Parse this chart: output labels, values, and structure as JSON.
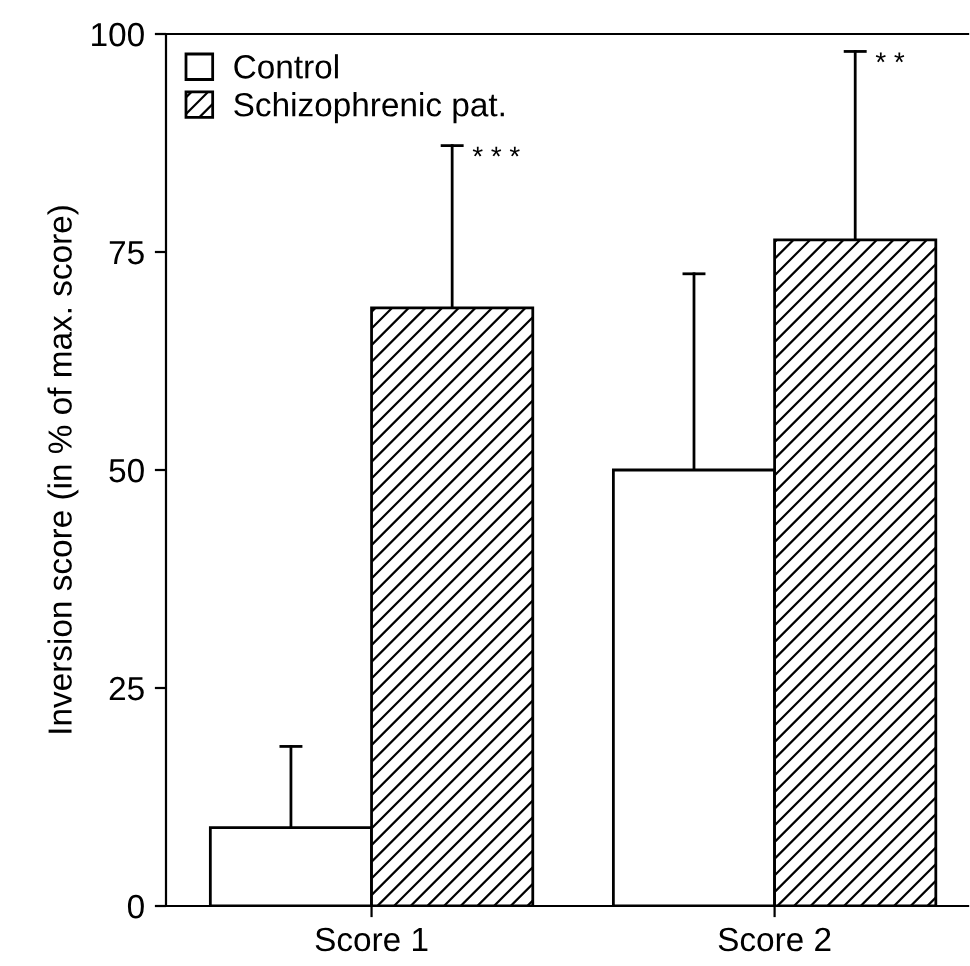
{
  "chart_data": {
    "type": "bar",
    "ylabel": "Inversion score (in % of max. score)",
    "categories": [
      "Score 1",
      "Score 2"
    ],
    "series": [
      {
        "name": "Control",
        "color": "#ffffff",
        "values": [
          9,
          50
        ],
        "errors": [
          [
            9,
            18.3
          ],
          [
            50,
            72.5
          ]
        ]
      },
      {
        "name": "Schizophrenic pat.",
        "color": "#000000",
        "values": [
          68.6,
          76.4
        ],
        "errors": [
          [
            68.6,
            87.2
          ],
          [
            76.4,
            98
          ]
        ]
      }
    ],
    "ylim": [
      0,
      100
    ],
    "yticks": [
      0,
      25,
      50,
      75,
      100
    ],
    "grid": false,
    "legend": "top left",
    "annotations": [
      "* * *",
      "* *"
    ]
  }
}
